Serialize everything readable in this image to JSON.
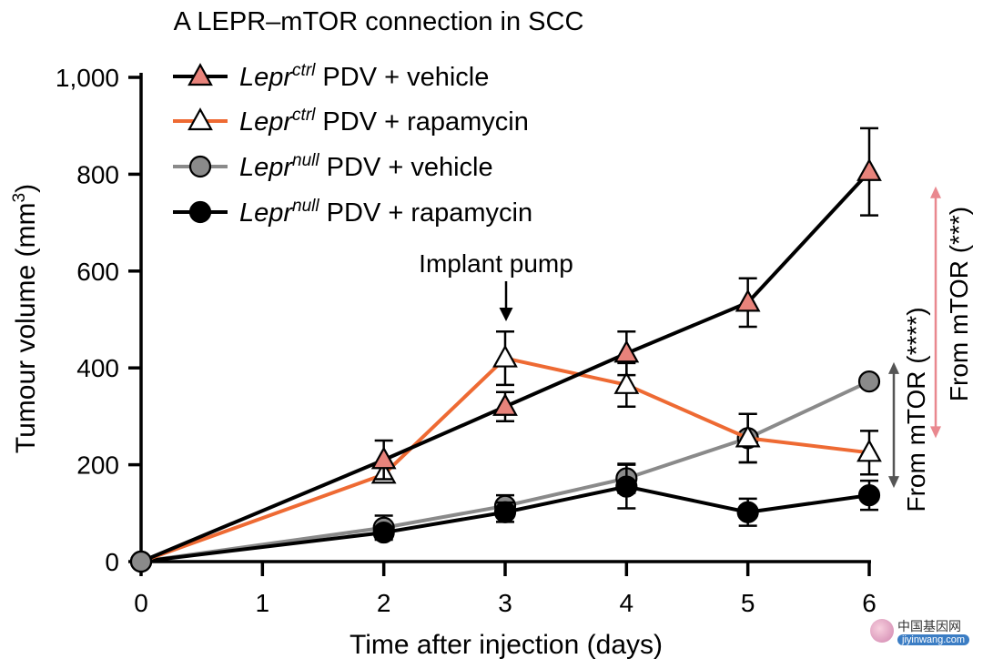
{
  "chart_data": {
    "type": "line",
    "title": "A LEPR–mTOR connection in SCC",
    "xlabel": "Time after injection (days)",
    "ylabel": "Tumour volume (mm³)",
    "ylabel_parts": {
      "main": "Tumour volume (mm",
      "sup": "3",
      "end": ")"
    },
    "x_ticks": [
      "0",
      "1",
      "2",
      "3",
      "4",
      "5",
      "6"
    ],
    "y_ticks": [
      "0",
      "200",
      "400",
      "600",
      "800",
      "1,000"
    ],
    "xlim": [
      0,
      6
    ],
    "ylim": [
      0,
      1000
    ],
    "legend_position": "top-left",
    "series": [
      {
        "name": "Lepr ctrl PDV + vehicle",
        "name_parts": {
          "gene": "Lepr",
          "sup": "ctrl",
          "rest": " PDV + vehicle"
        },
        "line_color": "#000000",
        "marker": "triangle",
        "marker_fill": "#e8837b",
        "x": [
          0,
          2,
          3,
          4,
          5,
          6
        ],
        "values": [
          0,
          210,
          320,
          430,
          535,
          805
        ],
        "errors": [
          0,
          40,
          30,
          45,
          50,
          90
        ]
      },
      {
        "name": "Lepr ctrl PDV + rapamycin",
        "name_parts": {
          "gene": "Lepr",
          "sup": "ctrl",
          "rest": " PDV + rapamycin"
        },
        "line_color": "#ee6a33",
        "marker": "triangle",
        "marker_fill": "#ffffff",
        "x": [
          0,
          2,
          3,
          4,
          5,
          6
        ],
        "values": [
          0,
          180,
          420,
          365,
          255,
          225
        ],
        "errors": [
          0,
          15,
          55,
          45,
          50,
          45
        ]
      },
      {
        "name": "Lepr null PDV + vehicle",
        "name_parts": {
          "gene": "Lepr",
          "sup": "null",
          "rest": " PDV + vehicle"
        },
        "line_color": "#8a8a8a",
        "marker": "circle",
        "marker_fill": "#8a8a8a",
        "x": [
          0,
          2,
          3,
          4,
          5,
          6
        ],
        "values": [
          0,
          70,
          115,
          172,
          255,
          372
        ],
        "errors": [
          0,
          25,
          22,
          30,
          50,
          0
        ]
      },
      {
        "name": "Lepr null PDV + rapamycin",
        "name_parts": {
          "gene": "Lepr",
          "sup": "null",
          "rest": " PDV + rapamycin"
        },
        "line_color": "#000000",
        "marker": "circle",
        "marker_fill": "#000000",
        "x": [
          0,
          2,
          3,
          4,
          5,
          6
        ],
        "values": [
          0,
          60,
          102,
          155,
          102,
          137
        ],
        "errors": [
          0,
          12,
          20,
          45,
          28,
          30
        ]
      }
    ],
    "annotations": [
      {
        "text": "Implant pump",
        "x": 3
      },
      {
        "text": "From mTOR (***)",
        "arrow_color": "#e9888f",
        "y_range": [
          225,
          805
        ]
      },
      {
        "text": "From mTOR (****)",
        "arrow_color": "#555555",
        "y_range": [
          137,
          372
        ]
      }
    ]
  },
  "watermark": {
    "cn": "中国基因网",
    "url": "jiyinwang.com"
  }
}
